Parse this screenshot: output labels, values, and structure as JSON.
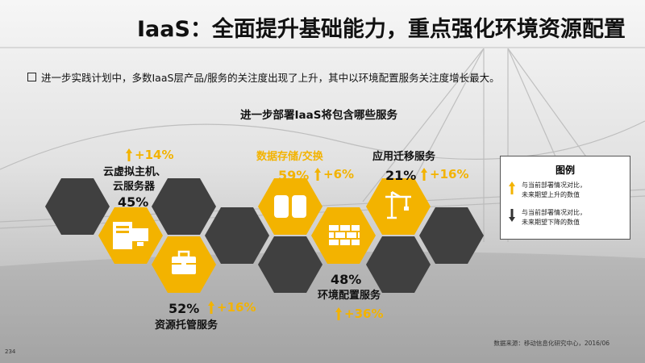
{
  "header": {
    "title": "IaaS：全面提升基础能力，重点强化环境资源配置"
  },
  "intro": {
    "text": "进一步实践计划中，多数IaaS层产品/服务的关注度出现了上升，其中以环境配置服务关注度增长最大。"
  },
  "section_title": "进一步部署IaaS将包含哪些服务",
  "services": [
    {
      "name_line1": "云虚拟主机、",
      "name_line2": "云服务器",
      "percent": "45%",
      "change": "+14%",
      "icon": "server-icon"
    },
    {
      "name": "资源托管服务",
      "percent": "52%",
      "change": "+16%",
      "icon": "briefcase-icon"
    },
    {
      "name": "数据存储/交换",
      "percent": "59%",
      "change": "+6%",
      "icon": "database-icon"
    },
    {
      "name": "环境配置服务",
      "percent": "48%",
      "change": "+36%",
      "icon": "brick-wall-icon"
    },
    {
      "name": "应用迁移服务",
      "percent": "21%",
      "change": "+16%",
      "icon": "crane-icon"
    }
  ],
  "legend": {
    "title": "图例",
    "up_text_1": "与当前部署情况对比，",
    "up_text_2": "未来期望上升的数值",
    "down_text_1": "与当前部署情况对比，",
    "down_text_2": "未来期望下降的数值"
  },
  "footer": {
    "source": "数据来源：移动信息化研究中心，2016/06",
    "page_number": "234"
  },
  "colors": {
    "accent": "#f3b300",
    "dark_hex": "#404040"
  }
}
